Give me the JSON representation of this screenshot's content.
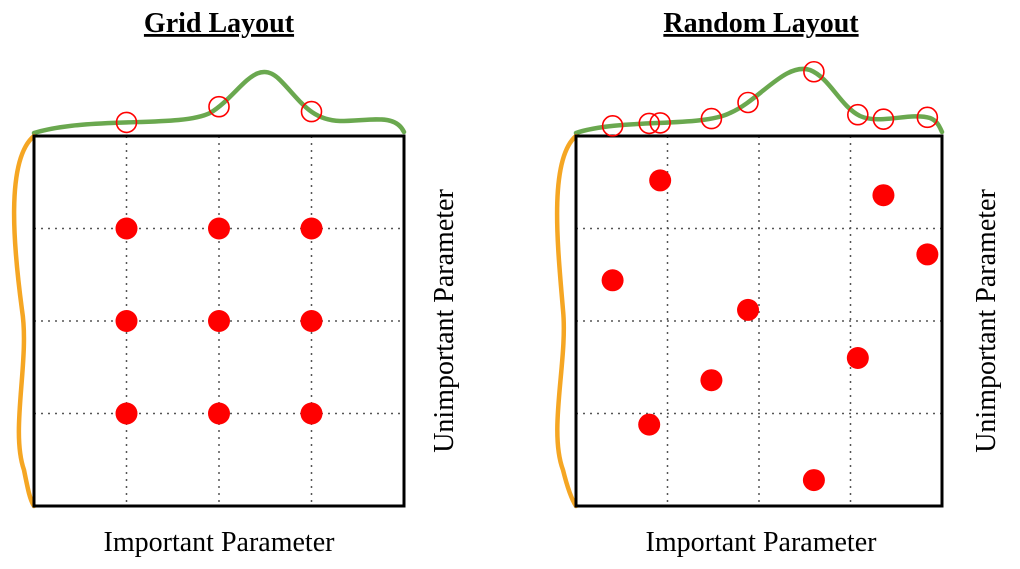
{
  "colors": {
    "important_curve": "#6aa84f",
    "unimportant_curve": "#f5a623",
    "samples": "#ff0000",
    "frame": "#000000"
  },
  "panels": [
    {
      "id": "grid",
      "title": "Grid Layout",
      "x_label": "Important Parameter",
      "y_label": "Unimportant Parameter",
      "divisions": 4,
      "points": [
        {
          "u": 0.25,
          "v": 0.25
        },
        {
          "u": 0.5,
          "v": 0.25
        },
        {
          "u": 0.75,
          "v": 0.25
        },
        {
          "u": 0.25,
          "v": 0.5
        },
        {
          "u": 0.5,
          "v": 0.5
        },
        {
          "u": 0.75,
          "v": 0.5
        },
        {
          "u": 0.25,
          "v": 0.75
        },
        {
          "u": 0.5,
          "v": 0.75
        },
        {
          "u": 0.75,
          "v": 0.75
        }
      ]
    },
    {
      "id": "random",
      "title": "Random Layout",
      "x_label": "Important Parameter",
      "y_label": "Unimportant Parameter",
      "divisions": 4,
      "points": [
        {
          "u": 0.23,
          "v": 0.12
        },
        {
          "u": 0.84,
          "v": 0.16
        },
        {
          "u": 0.96,
          "v": 0.32
        },
        {
          "u": 0.1,
          "v": 0.39
        },
        {
          "u": 0.47,
          "v": 0.47
        },
        {
          "u": 0.77,
          "v": 0.6
        },
        {
          "u": 0.37,
          "v": 0.66
        },
        {
          "u": 0.2,
          "v": 0.78
        },
        {
          "u": 0.65,
          "v": 0.93
        }
      ]
    }
  ]
}
